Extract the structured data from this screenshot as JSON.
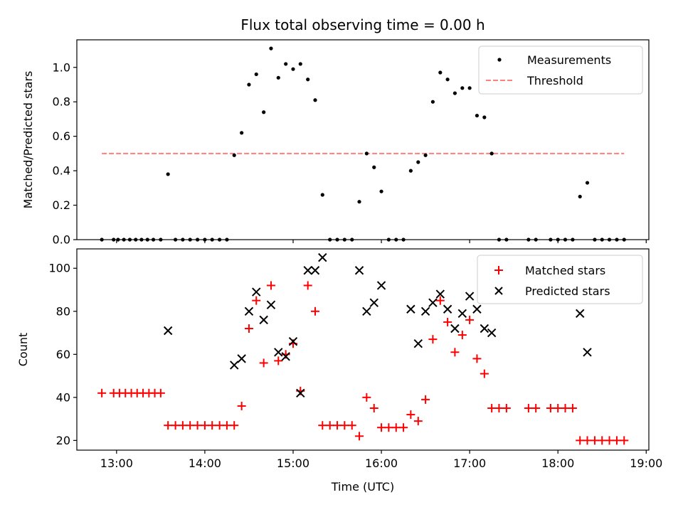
{
  "chart_data": [
    {
      "type": "scatter",
      "title": "Flux total observing time = 0.00 h",
      "xlabel": "",
      "ylabel": "Matched/Predicted stars",
      "ylim": [
        0,
        1.16
      ],
      "yticks": [
        0.0,
        0.2,
        0.4,
        0.6,
        0.8,
        1.0
      ],
      "ytick_labels": [
        "0.0",
        "0.2",
        "0.4",
        "0.6",
        "0.8",
        "1.0"
      ],
      "legend_position": "top-right",
      "series": [
        {
          "name": "Measurements",
          "marker": "dot",
          "color": "#000000",
          "x": [
            12.833,
            12.967,
            13.017,
            13.083,
            13.15,
            13.217,
            13.283,
            13.35,
            13.417,
            13.5,
            13.583,
            13.667,
            13.75,
            13.833,
            13.917,
            14.0,
            14.083,
            14.167,
            14.25,
            14.333,
            14.417,
            14.5,
            14.583,
            14.667,
            14.75,
            14.833,
            14.917,
            15.0,
            15.083,
            15.167,
            15.25,
            15.333,
            15.417,
            15.5,
            15.583,
            15.667,
            15.75,
            15.833,
            15.917,
            16.0,
            16.083,
            16.167,
            16.25,
            16.333,
            16.417,
            16.5,
            16.583,
            16.667,
            16.75,
            16.833,
            16.917,
            17.0,
            17.083,
            17.167,
            17.25,
            17.333,
            17.417,
            17.667,
            17.75,
            17.917,
            18.0,
            18.083,
            18.167,
            18.25,
            18.333,
            18.417,
            18.5,
            18.583,
            18.667,
            18.75
          ],
          "y": [
            0.0,
            0.0,
            0.0,
            0.0,
            0.0,
            0.0,
            0.0,
            0.0,
            0.0,
            0.0,
            0.38,
            0.0,
            0.0,
            0.0,
            0.0,
            0.0,
            0.0,
            0.0,
            0.0,
            0.49,
            0.62,
            0.9,
            0.96,
            0.74,
            1.11,
            0.94,
            1.02,
            0.99,
            1.02,
            0.93,
            0.81,
            0.26,
            0.0,
            0.0,
            0.0,
            0.0,
            0.22,
            0.5,
            0.42,
            0.28,
            0.0,
            0.0,
            0.0,
            0.4,
            0.45,
            0.49,
            0.8,
            0.97,
            0.93,
            0.85,
            0.88,
            0.88,
            0.72,
            0.71,
            0.5,
            0.0,
            0.0,
            0.0,
            0.0,
            0.0,
            0.0,
            0.0,
            0.0,
            0.25,
            0.33,
            0.0,
            0.0,
            0.0,
            0.0,
            0.0
          ]
        },
        {
          "name": "Threshold",
          "marker": "dashed-line",
          "color": "#ff7f7f",
          "x": [
            12.833,
            18.75
          ],
          "y": [
            0.5,
            0.5
          ]
        }
      ]
    },
    {
      "type": "scatter",
      "title": "",
      "xlabel": "Time (UTC)",
      "ylabel": "Count",
      "ylim": [
        15.5,
        109
      ],
      "yticks": [
        20,
        40,
        60,
        80,
        100
      ],
      "ytick_labels": [
        "20",
        "40",
        "60",
        "80",
        "100"
      ],
      "xlim": [
        12.55,
        19.03
      ],
      "xticks": [
        13,
        14,
        15,
        16,
        17,
        18,
        19
      ],
      "xtick_labels": [
        "13:00",
        "14:00",
        "15:00",
        "16:00",
        "17:00",
        "18:00",
        "19:00"
      ],
      "legend_position": "top-right",
      "series": [
        {
          "name": "Matched stars",
          "marker": "plus",
          "color": "#ff0000",
          "x": [
            12.833,
            12.967,
            13.033,
            13.1,
            13.167,
            13.233,
            13.3,
            13.367,
            13.433,
            13.5,
            13.583,
            13.667,
            13.75,
            13.833,
            13.917,
            14.0,
            14.083,
            14.167,
            14.25,
            14.333,
            14.417,
            14.5,
            14.583,
            14.667,
            14.75,
            14.833,
            14.917,
            15.0,
            15.083,
            15.167,
            15.25,
            15.333,
            15.417,
            15.5,
            15.583,
            15.667,
            15.75,
            15.833,
            15.917,
            16.0,
            16.083,
            16.167,
            16.25,
            16.333,
            16.417,
            16.5,
            16.583,
            16.667,
            16.75,
            16.833,
            16.917,
            17.0,
            17.083,
            17.167,
            17.25,
            17.333,
            17.417,
            17.667,
            17.75,
            17.917,
            18.0,
            18.083,
            18.167,
            18.25,
            18.333,
            18.417,
            18.5,
            18.583,
            18.667,
            18.75
          ],
          "y": [
            42,
            42,
            42,
            42,
            42,
            42,
            42,
            42,
            42,
            42,
            27,
            27,
            27,
            27,
            27,
            27,
            27,
            27,
            27,
            27,
            36,
            72,
            85,
            56,
            92,
            57,
            60,
            65,
            43,
            92,
            80,
            27,
            27,
            27,
            27,
            27,
            22,
            40,
            35,
            26,
            26,
            26,
            26,
            32,
            29,
            39,
            67,
            85,
            75,
            61,
            69,
            76,
            58,
            51,
            35,
            35,
            35,
            35,
            35,
            35,
            35,
            35,
            35,
            20,
            20,
            20,
            20,
            20,
            20,
            20
          ]
        },
        {
          "name": "Predicted stars",
          "marker": "x",
          "color": "#000000",
          "x": [
            13.583,
            14.333,
            14.417,
            14.5,
            14.583,
            14.667,
            14.75,
            14.833,
            14.917,
            15.0,
            15.083,
            15.167,
            15.25,
            15.333,
            15.75,
            15.833,
            15.917,
            16.0,
            16.333,
            16.417,
            16.5,
            16.583,
            16.667,
            16.75,
            16.833,
            16.917,
            17.0,
            17.083,
            17.167,
            17.25,
            18.25,
            18.333
          ],
          "y": [
            71,
            55,
            58,
            80,
            89,
            76,
            83,
            61,
            59,
            66,
            42,
            99,
            99,
            105,
            99,
            80,
            84,
            92,
            81,
            65,
            80,
            84,
            88,
            81,
            72,
            79,
            87,
            81,
            72,
            70,
            79,
            61
          ]
        }
      ]
    }
  ]
}
